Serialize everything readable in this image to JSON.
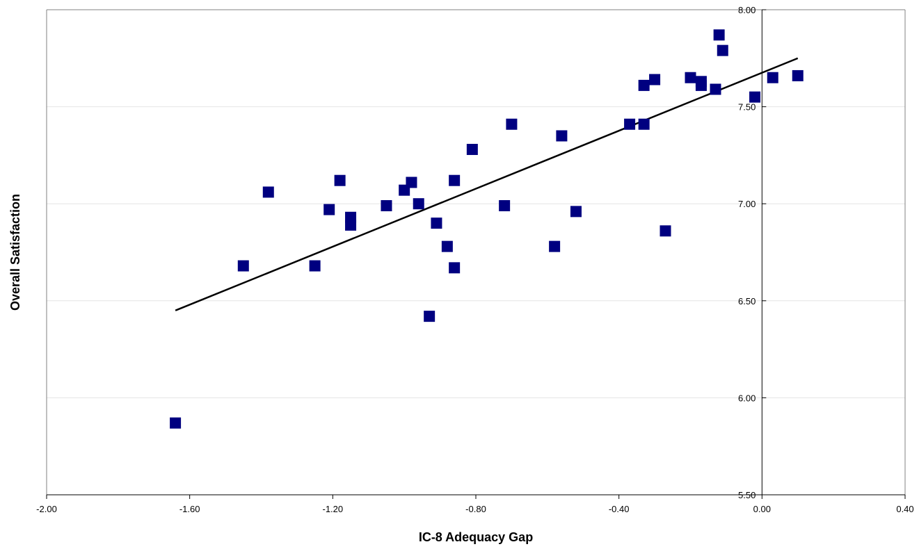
{
  "chart_data": {
    "type": "scatter",
    "title": "",
    "xlabel": "IC-8 Adequacy Gap",
    "ylabel": "Overall Satisfaction",
    "xlim": [
      -2.0,
      0.4
    ],
    "ylim": [
      5.5,
      8.0
    ],
    "x_ticks": [
      "-2.00",
      "-1.60",
      "-1.20",
      "-0.80",
      "-0.40",
      "0.00",
      "0.40"
    ],
    "y_ticks": [
      "5.50",
      "6.00",
      "6.50",
      "7.00",
      "7.50",
      "8.00"
    ],
    "grid": "horizontal",
    "legend": "none",
    "marker_color": "#000080",
    "trendline_color": "#000000",
    "trendline": {
      "x": [
        -1.64,
        0.1
      ],
      "y": [
        6.45,
        7.75
      ]
    },
    "series": [
      {
        "x": [
          -1.64,
          -1.45,
          -1.38,
          -1.25,
          -1.21,
          -1.18,
          -1.15,
          -1.15,
          -1.05,
          -1.0,
          -0.98,
          -0.96,
          -0.93,
          -0.91,
          -0.88,
          -0.86,
          -0.86,
          -0.81,
          -0.72,
          -0.7,
          -0.58,
          -0.56,
          -0.52,
          -0.37,
          -0.33,
          -0.33,
          -0.3,
          -0.27,
          -0.2,
          -0.17,
          -0.17,
          -0.13,
          -0.12,
          -0.11,
          -0.02,
          0.03,
          0.1
        ],
        "y": [
          5.87,
          6.68,
          7.06,
          6.68,
          6.97,
          7.12,
          6.93,
          6.89,
          6.99,
          7.07,
          7.11,
          7.0,
          6.42,
          6.9,
          6.78,
          6.67,
          7.12,
          7.28,
          6.99,
          7.41,
          6.78,
          7.35,
          6.96,
          7.41,
          7.41,
          7.61,
          7.64,
          6.86,
          7.65,
          7.63,
          7.61,
          7.59,
          7.87,
          7.79,
          7.55,
          7.65,
          7.66
        ]
      }
    ]
  }
}
